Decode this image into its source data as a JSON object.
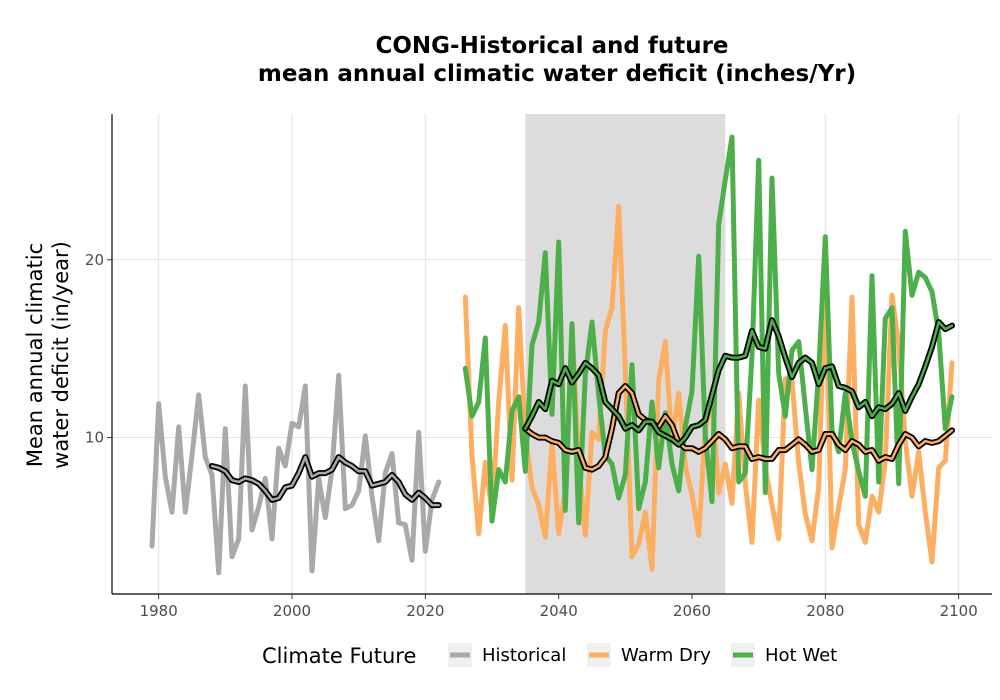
{
  "chart_data": {
    "type": "line",
    "title_line1": "CONG-Historical and future",
    "title_line2": "mean annual climatic water deficit (inches/Yr)",
    "ylabel_line1": "Mean annual climatic",
    "ylabel_line2": "water deficit (in/year)",
    "xlabel": "",
    "xlim": [
      1973,
      2105
    ],
    "ylim": [
      1.2,
      28.2
    ],
    "x_ticks": [
      1980,
      2000,
      2020,
      2040,
      2060,
      2080,
      2100
    ],
    "y_ticks": [
      10,
      20
    ],
    "grid": true,
    "shaded_period": [
      2035,
      2065
    ],
    "legend": {
      "title": "Climate Future",
      "position": "bottom",
      "entries": [
        "Historical",
        "Warm Dry",
        "Hot Wet"
      ]
    },
    "colors": {
      "Historical": "#a9a9a9",
      "Warm Dry": "#fdae61",
      "Hot Wet": "#4daf4a",
      "smooth": "#000000",
      "shade": "#dcdcdc"
    },
    "series": [
      {
        "name": "Historical",
        "x": [
          1979,
          1980,
          1981,
          1982,
          1983,
          1984,
          1985,
          1986,
          1987,
          1988,
          1989,
          1990,
          1991,
          1992,
          1993,
          1994,
          1995,
          1996,
          1997,
          1998,
          1999,
          2000,
          2001,
          2002,
          2003,
          2004,
          2005,
          2006,
          2007,
          2008,
          2009,
          2010,
          2011,
          2012,
          2013,
          2014,
          2015,
          2016,
          2017,
          2018,
          2019,
          2020,
          2021,
          2022
        ],
        "values": [
          3.9,
          11.9,
          7.8,
          5.8,
          10.6,
          5.8,
          9.0,
          12.4,
          8.9,
          7.9,
          2.4,
          10.5,
          3.3,
          4.3,
          12.9,
          4.8,
          6.1,
          7.7,
          4.3,
          9.4,
          8.4,
          10.8,
          10.6,
          12.9,
          2.5,
          7.7,
          5.5,
          8.2,
          13.5,
          6.0,
          6.2,
          7.0,
          10.1,
          6.7,
          4.2,
          8.0,
          9.1,
          5.2,
          5.1,
          3.1,
          10.3,
          3.6,
          6.5,
          7.5
        ]
      },
      {
        "name": "Warm Dry",
        "x": [
          2026,
          2027,
          2028,
          2029,
          2030,
          2031,
          2032,
          2033,
          2034,
          2035,
          2036,
          2037,
          2038,
          2039,
          2040,
          2041,
          2042,
          2043,
          2044,
          2045,
          2046,
          2047,
          2048,
          2049,
          2050,
          2051,
          2052,
          2053,
          2054,
          2055,
          2056,
          2057,
          2058,
          2059,
          2060,
          2061,
          2062,
          2063,
          2064,
          2065,
          2066,
          2067,
          2068,
          2069,
          2070,
          2071,
          2072,
          2073,
          2074,
          2075,
          2076,
          2077,
          2078,
          2079,
          2080,
          2081,
          2082,
          2083,
          2084,
          2085,
          2086,
          2087,
          2088,
          2089,
          2090,
          2091,
          2092,
          2093,
          2094,
          2095,
          2096,
          2097,
          2098,
          2099
        ],
        "values": [
          17.9,
          9.0,
          4.6,
          8.6,
          5.8,
          12.0,
          16.3,
          7.6,
          17.3,
          10.2,
          7.2,
          6.2,
          4.4,
          9.7,
          4.6,
          7.0,
          16.3,
          8.5,
          4.5,
          10.3,
          9.9,
          16.0,
          17.3,
          23.0,
          13.8,
          3.3,
          4.0,
          5.8,
          2.6,
          13.2,
          15.4,
          9.7,
          12.5,
          8.4,
          6.8,
          4.5,
          10.5,
          12.1,
          6.9,
          8.5,
          6.3,
          12.5,
          7.4,
          4.1,
          12.1,
          8.3,
          6.2,
          4.3,
          13.3,
          13.2,
          8.6,
          5.7,
          4.2,
          7.2,
          19.6,
          3.8,
          6.1,
          8.2,
          17.9,
          5.1,
          4.1,
          6.7,
          5.8,
          8.7,
          18.0,
          15.2,
          9.8,
          6.7,
          9.2,
          5.8,
          3.0,
          8.3,
          8.7,
          14.2
        ]
      },
      {
        "name": "Hot Wet",
        "x": [
          2026,
          2027,
          2028,
          2029,
          2030,
          2031,
          2032,
          2033,
          2034,
          2035,
          2036,
          2037,
          2038,
          2039,
          2040,
          2041,
          2042,
          2043,
          2044,
          2045,
          2046,
          2047,
          2048,
          2049,
          2050,
          2051,
          2052,
          2053,
          2054,
          2055,
          2056,
          2057,
          2058,
          2059,
          2060,
          2061,
          2062,
          2063,
          2064,
          2065,
          2066,
          2067,
          2068,
          2069,
          2070,
          2071,
          2072,
          2073,
          2074,
          2075,
          2076,
          2077,
          2078,
          2079,
          2080,
          2081,
          2082,
          2083,
          2084,
          2085,
          2086,
          2087,
          2088,
          2089,
          2090,
          2091,
          2092,
          2093,
          2094,
          2095,
          2096,
          2097,
          2098,
          2099
        ],
        "values": [
          13.9,
          11.2,
          12.0,
          15.6,
          5.3,
          8.2,
          7.5,
          11.5,
          12.3,
          8.1,
          15.2,
          16.5,
          20.4,
          11.3,
          21.0,
          5.9,
          16.4,
          5.2,
          13.5,
          16.5,
          12.4,
          9.0,
          8.5,
          6.6,
          7.9,
          14.1,
          6.0,
          7.5,
          12.0,
          8.3,
          11.4,
          8.5,
          7.0,
          10.6,
          12.6,
          20.2,
          10.1,
          6.4,
          22.0,
          24.5,
          26.9,
          7.5,
          8.0,
          14.6,
          25.6,
          6.9,
          24.6,
          13.6,
          11.2,
          14.9,
          15.4,
          11.7,
          8.2,
          13.7,
          21.3,
          10.4,
          9.2,
          12.5,
          9.8,
          8.1,
          6.7,
          19.1,
          7.5,
          16.7,
          17.3,
          7.4,
          21.6,
          18.0,
          19.3,
          19.0,
          18.2,
          15.9,
          10.5,
          12.3
        ]
      },
      {
        "name": "Historical smoothed",
        "x": [
          1988,
          1989,
          1990,
          1991,
          1992,
          1993,
          1994,
          1995,
          1996,
          1997,
          1998,
          1999,
          2000,
          2001,
          2002,
          2003,
          2004,
          2005,
          2006,
          2007,
          2008,
          2009,
          2010,
          2011,
          2012,
          2013,
          2014,
          2015,
          2016,
          2017,
          2018,
          2019,
          2020,
          2021,
          2022
        ],
        "values": [
          8.4,
          8.3,
          8.1,
          7.6,
          7.5,
          7.7,
          7.6,
          7.4,
          7.0,
          6.5,
          6.6,
          7.2,
          7.3,
          8.0,
          8.9,
          7.8,
          8.0,
          8.0,
          8.2,
          8.9,
          8.6,
          8.4,
          8.1,
          8.1,
          7.3,
          7.4,
          7.5,
          7.9,
          7.5,
          6.8,
          6.5,
          6.9,
          6.6,
          6.2,
          6.2
        ]
      },
      {
        "name": "Warm Dry smoothed",
        "x": [
          2035,
          2036,
          2037,
          2038,
          2039,
          2040,
          2041,
          2042,
          2043,
          2044,
          2045,
          2046,
          2047,
          2048,
          2049,
          2050,
          2051,
          2052,
          2053,
          2054,
          2055,
          2056,
          2057,
          2058,
          2059,
          2060,
          2061,
          2062,
          2063,
          2064,
          2065,
          2066,
          2067,
          2068,
          2069,
          2070,
          2071,
          2072,
          2073,
          2074,
          2075,
          2076,
          2077,
          2078,
          2079,
          2080,
          2081,
          2082,
          2083,
          2084,
          2085,
          2086,
          2087,
          2088,
          2089,
          2090,
          2091,
          2092,
          2093,
          2094,
          2095,
          2096,
          2097,
          2098,
          2099
        ],
        "values": [
          10.5,
          10.2,
          10.0,
          10.0,
          9.8,
          9.7,
          9.3,
          9.2,
          9.3,
          8.3,
          8.2,
          8.4,
          8.9,
          10.5,
          12.5,
          12.9,
          12.5,
          11.3,
          11.0,
          10.8,
          10.6,
          11.2,
          10.7,
          9.7,
          9.4,
          9.4,
          9.2,
          9.4,
          9.8,
          10.2,
          9.9,
          9.4,
          9.5,
          9.5,
          8.8,
          8.9,
          8.8,
          8.8,
          9.3,
          9.3,
          9.6,
          9.9,
          9.6,
          9.2,
          9.3,
          10.2,
          10.2,
          9.6,
          9.3,
          9.8,
          9.6,
          9.2,
          9.3,
          8.7,
          8.9,
          8.8,
          9.6,
          10.2,
          10.0,
          9.5,
          9.8,
          9.7,
          9.8,
          10.1,
          10.4
        ]
      },
      {
        "name": "Hot Wet smoothed",
        "x": [
          2035,
          2036,
          2037,
          2038,
          2039,
          2040,
          2041,
          2042,
          2043,
          2044,
          2045,
          2046,
          2047,
          2048,
          2049,
          2050,
          2051,
          2052,
          2053,
          2054,
          2055,
          2056,
          2057,
          2058,
          2059,
          2060,
          2061,
          2062,
          2063,
          2064,
          2065,
          2066,
          2067,
          2068,
          2069,
          2070,
          2071,
          2072,
          2073,
          2074,
          2075,
          2076,
          2077,
          2078,
          2079,
          2080,
          2081,
          2082,
          2083,
          2084,
          2085,
          2086,
          2087,
          2088,
          2089,
          2090,
          2091,
          2092,
          2093,
          2094,
          2095,
          2096,
          2097,
          2098,
          2099
        ],
        "values": [
          10.5,
          11.2,
          12.0,
          11.6,
          13.2,
          13.0,
          13.9,
          13.1,
          13.6,
          14.2,
          13.9,
          13.5,
          12.0,
          11.6,
          11.2,
          10.5,
          10.7,
          10.4,
          10.9,
          10.9,
          10.3,
          10.1,
          9.9,
          9.6,
          10.0,
          10.6,
          10.7,
          11.0,
          12.4,
          13.8,
          14.6,
          14.5,
          14.5,
          14.6,
          16.0,
          15.1,
          15.0,
          16.6,
          15.7,
          14.5,
          13.4,
          14.2,
          14.5,
          14.2,
          13.0,
          13.9,
          14.0,
          12.9,
          12.8,
          12.6,
          11.7,
          12.0,
          11.2,
          11.7,
          11.6,
          11.9,
          12.5,
          11.5,
          12.3,
          13.0,
          14.0,
          15.1,
          16.5,
          16.1,
          16.3
        ]
      }
    ]
  }
}
